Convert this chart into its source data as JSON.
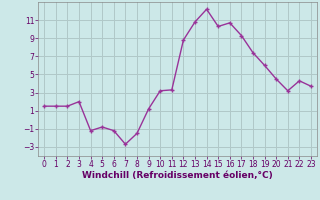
{
  "x": [
    0,
    1,
    2,
    3,
    4,
    5,
    6,
    7,
    8,
    9,
    10,
    11,
    12,
    13,
    14,
    15,
    16,
    17,
    18,
    19,
    20,
    21,
    22,
    23
  ],
  "y": [
    1.5,
    1.5,
    1.5,
    2.0,
    -1.2,
    -0.8,
    -1.2,
    -2.7,
    -1.5,
    1.2,
    3.2,
    3.3,
    8.8,
    10.8,
    12.2,
    10.3,
    10.7,
    9.3,
    7.4,
    6.0,
    4.5,
    3.2,
    4.3,
    3.7
  ],
  "line_color": "#993399",
  "marker": "+",
  "marker_color": "#993399",
  "background_color": "#cce8e8",
  "grid_color": "#b0c8c8",
  "xlabel": "Windchill (Refroidissement éolien,°C)",
  "xlim": [
    -0.5,
    23.5
  ],
  "ylim": [
    -4,
    13
  ],
  "yticks": [
    -3,
    -1,
    1,
    3,
    5,
    7,
    9,
    11
  ],
  "xticks": [
    0,
    1,
    2,
    3,
    4,
    5,
    6,
    7,
    8,
    9,
    10,
    11,
    12,
    13,
    14,
    15,
    16,
    17,
    18,
    19,
    20,
    21,
    22,
    23
  ],
  "tick_labelsize": 5.5,
  "xlabel_fontsize": 6.5,
  "linewidth": 1.0,
  "markersize": 3.5
}
